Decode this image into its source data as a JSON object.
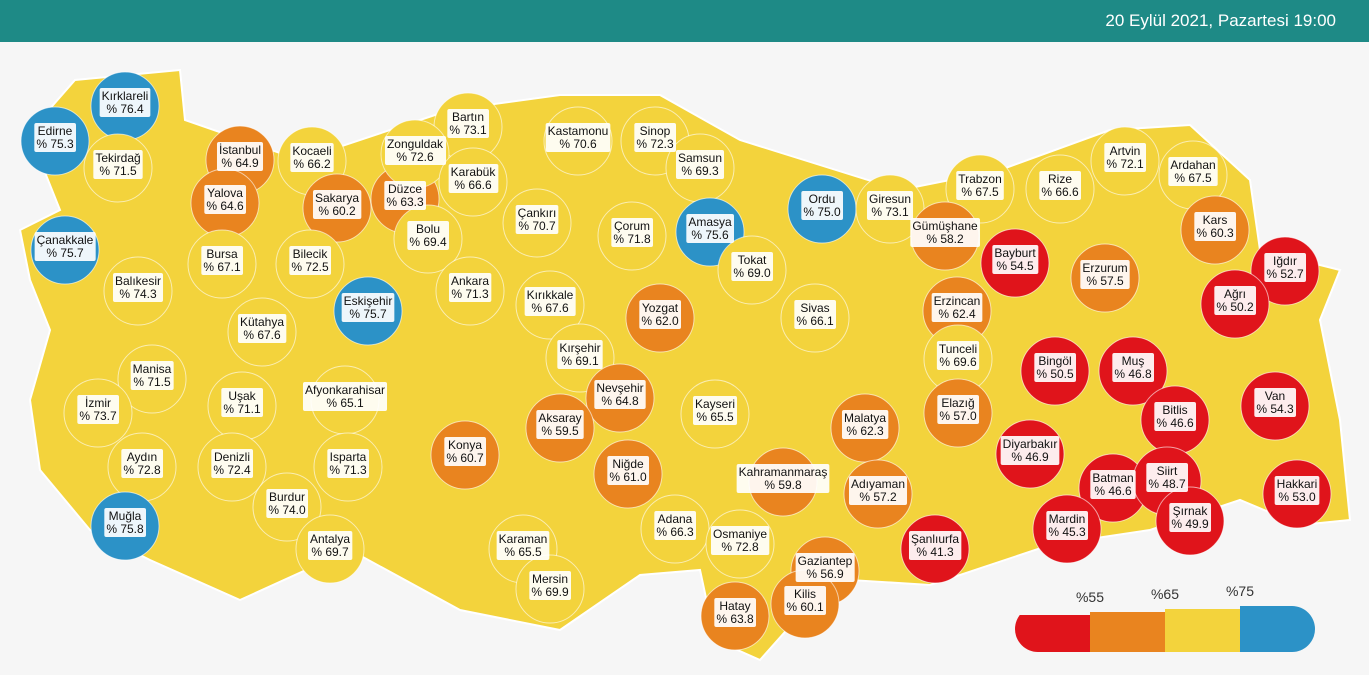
{
  "header": {
    "date": "20 Eylül 2021, Pazartesi 19:00"
  },
  "provinces": [
    {
      "name": "Kırklareli",
      "value": 76.4,
      "value_label": "% 76.4"
    },
    {
      "name": "Edirne",
      "value": 75.3,
      "value_label": "% 75.3"
    },
    {
      "name": "Tekirdağ",
      "value": 71.5,
      "value_label": "% 71.5"
    },
    {
      "name": "İstanbul",
      "value": 64.9,
      "value_label": "% 64.9"
    },
    {
      "name": "Kocaeli",
      "value": 66.2,
      "value_label": "% 66.2"
    },
    {
      "name": "Yalova",
      "value": 64.6,
      "value_label": "% 64.6"
    },
    {
      "name": "Sakarya",
      "value": 60.2,
      "value_label": "% 60.2"
    },
    {
      "name": "Düzce",
      "value": 63.3,
      "value_label": "% 63.3"
    },
    {
      "name": "Bartın",
      "value": 73.1,
      "value_label": "% 73.1"
    },
    {
      "name": "Zonguldak",
      "value": 72.6,
      "value_label": "% 72.6"
    },
    {
      "name": "Karabük",
      "value": 66.6,
      "value_label": "% 66.6"
    },
    {
      "name": "Kastamonu",
      "value": 70.6,
      "value_label": "% 70.6"
    },
    {
      "name": "Sinop",
      "value": 72.3,
      "value_label": "% 72.3"
    },
    {
      "name": "Samsun",
      "value": 69.3,
      "value_label": "% 69.3"
    },
    {
      "name": "Çanakkale",
      "value": 75.7,
      "value_label": "% 75.7"
    },
    {
      "name": "Bursa",
      "value": 67.1,
      "value_label": "% 67.1"
    },
    {
      "name": "Bilecik",
      "value": 72.5,
      "value_label": "% 72.5"
    },
    {
      "name": "Bolu",
      "value": 69.4,
      "value_label": "% 69.4"
    },
    {
      "name": "Çankırı",
      "value": 70.7,
      "value_label": "% 70.7"
    },
    {
      "name": "Çorum",
      "value": 71.8,
      "value_label": "% 71.8"
    },
    {
      "name": "Amasya",
      "value": 75.6,
      "value_label": "% 75.6"
    },
    {
      "name": "Ordu",
      "value": 75.0,
      "value_label": "% 75.0"
    },
    {
      "name": "Giresun",
      "value": 73.1,
      "value_label": "% 73.1"
    },
    {
      "name": "Trabzon",
      "value": 67.5,
      "value_label": "% 67.5"
    },
    {
      "name": "Rize",
      "value": 66.6,
      "value_label": "% 66.6"
    },
    {
      "name": "Artvin",
      "value": 72.1,
      "value_label": "% 72.1"
    },
    {
      "name": "Ardahan",
      "value": 67.5,
      "value_label": "% 67.5"
    },
    {
      "name": "Kars",
      "value": 60.3,
      "value_label": "% 60.3"
    },
    {
      "name": "Gümüşhane",
      "value": 58.2,
      "value_label": "% 58.2"
    },
    {
      "name": "Bayburt",
      "value": 54.5,
      "value_label": "% 54.5"
    },
    {
      "name": "Iğdır",
      "value": 52.7,
      "value_label": "% 52.7"
    },
    {
      "name": "Erzurum",
      "value": 57.5,
      "value_label": "% 57.5"
    },
    {
      "name": "Ağrı",
      "value": 50.2,
      "value_label": "% 50.2"
    },
    {
      "name": "Balıkesir",
      "value": 74.3,
      "value_label": "% 74.3"
    },
    {
      "name": "Eskişehir",
      "value": 75.7,
      "value_label": "% 75.7"
    },
    {
      "name": "Ankara",
      "value": 71.3,
      "value_label": "% 71.3"
    },
    {
      "name": "Kırıkkale",
      "value": 67.6,
      "value_label": "% 67.6"
    },
    {
      "name": "Yozgat",
      "value": 62.0,
      "value_label": "% 62.0"
    },
    {
      "name": "Tokat",
      "value": 69.0,
      "value_label": "% 69.0"
    },
    {
      "name": "Sivas",
      "value": 66.1,
      "value_label": "% 66.1"
    },
    {
      "name": "Erzincan",
      "value": 62.4,
      "value_label": "% 62.4"
    },
    {
      "name": "Kütahya",
      "value": 67.6,
      "value_label": "% 67.6"
    },
    {
      "name": "Kırşehir",
      "value": 69.1,
      "value_label": "% 69.1"
    },
    {
      "name": "Tunceli",
      "value": 69.6,
      "value_label": "% 69.6"
    },
    {
      "name": "Bingöl",
      "value": 50.5,
      "value_label": "% 50.5"
    },
    {
      "name": "Muş",
      "value": 46.8,
      "value_label": "% 46.8"
    },
    {
      "name": "Manisa",
      "value": 71.5,
      "value_label": "% 71.5"
    },
    {
      "name": "Uşak",
      "value": 71.1,
      "value_label": "% 71.1"
    },
    {
      "name": "Afyonkarahisar",
      "value": 65.1,
      "value_label": "% 65.1"
    },
    {
      "name": "Nevşehir",
      "value": 64.8,
      "value_label": "% 64.8"
    },
    {
      "name": "Kayseri",
      "value": 65.5,
      "value_label": "% 65.5"
    },
    {
      "name": "İzmir",
      "value": 73.7,
      "value_label": "% 73.7"
    },
    {
      "name": "Aksaray",
      "value": 59.5,
      "value_label": "% 59.5"
    },
    {
      "name": "Konya",
      "value": 60.7,
      "value_label": "% 60.7"
    },
    {
      "name": "Malatya",
      "value": 62.3,
      "value_label": "% 62.3"
    },
    {
      "name": "Elazığ",
      "value": 57.0,
      "value_label": "% 57.0"
    },
    {
      "name": "Bitlis",
      "value": 46.6,
      "value_label": "% 46.6"
    },
    {
      "name": "Van",
      "value": 54.3,
      "value_label": "% 54.3"
    },
    {
      "name": "Diyarbakır",
      "value": 46.9,
      "value_label": "% 46.9"
    },
    {
      "name": "Aydın",
      "value": 72.8,
      "value_label": "% 72.8"
    },
    {
      "name": "Denizli",
      "value": 72.4,
      "value_label": "% 72.4"
    },
    {
      "name": "Isparta",
      "value": 71.3,
      "value_label": "% 71.3"
    },
    {
      "name": "Niğde",
      "value": 61.0,
      "value_label": "% 61.0"
    },
    {
      "name": "Kahramanmaraş",
      "value": 59.8,
      "value_label": "% 59.8"
    },
    {
      "name": "Adıyaman",
      "value": 57.2,
      "value_label": "% 57.2"
    },
    {
      "name": "Batman",
      "value": 46.6,
      "value_label": "% 46.6"
    },
    {
      "name": "Siirt",
      "value": 48.7,
      "value_label": "% 48.7"
    },
    {
      "name": "Hakkari",
      "value": 53.0,
      "value_label": "% 53.0"
    },
    {
      "name": "Burdur",
      "value": 74.0,
      "value_label": "% 74.0"
    },
    {
      "name": "Muğla",
      "value": 75.8,
      "value_label": "% 75.8"
    },
    {
      "name": "Adana",
      "value": 66.3,
      "value_label": "% 66.3"
    },
    {
      "name": "Şırnak",
      "value": 49.9,
      "value_label": "% 49.9"
    },
    {
      "name": "Mardin",
      "value": 45.3,
      "value_label": "% 45.3"
    },
    {
      "name": "Şanlıurfa",
      "value": 41.3,
      "value_label": "% 41.3"
    },
    {
      "name": "Karaman",
      "value": 65.5,
      "value_label": "% 65.5"
    },
    {
      "name": "Osmaniye",
      "value": 72.8,
      "value_label": "% 72.8"
    },
    {
      "name": "Antalya",
      "value": 69.7,
      "value_label": "% 69.7"
    },
    {
      "name": "Gaziantep",
      "value": 56.9,
      "value_label": "% 56.9"
    },
    {
      "name": "Mersin",
      "value": 69.9,
      "value_label": "% 69.9"
    },
    {
      "name": "Kilis",
      "value": 60.1,
      "value_label": "% 60.1"
    },
    {
      "name": "Hatay",
      "value": 63.8,
      "value_label": "% 63.8"
    }
  ],
  "legend": {
    "colors": [
      "#e0141b",
      "#e9841f",
      "#f3d33c",
      "#2c92c7"
    ],
    "thresholds": [
      {
        "value": 55,
        "label": "%55"
      },
      {
        "value": 65,
        "label": "%65"
      },
      {
        "value": 75,
        "label": "%75"
      }
    ]
  }
}
